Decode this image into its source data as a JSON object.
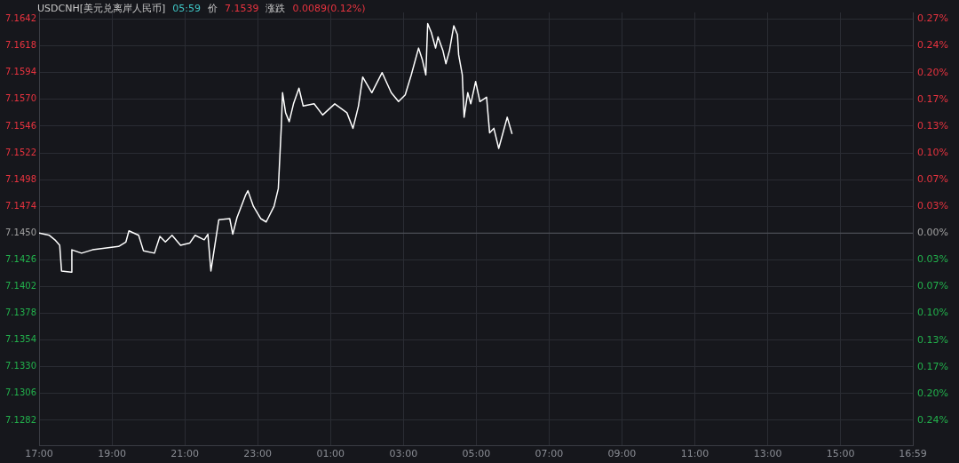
{
  "chart_data": {
    "type": "line",
    "title": "USDCNH[美元兑离岸人民币]",
    "annotations": [
      "05:59",
      "价",
      "7.1539",
      "涨跌",
      "0.0089(0.12%)"
    ],
    "series": [
      {
        "color": "#ffffff",
        "x": [
          "--01-01T17:00",
          "--01-01T17:17",
          "--01-01T17:26",
          "--01-01T17:34",
          "--01-01T17:37",
          "--01-01T17:53",
          "--01-01T17:54",
          "--01-01T18:10",
          "--01-01T18:28",
          "--01-01T19:11",
          "--01-01T19:23",
          "--01-01T19:28",
          "--01-01T19:44",
          "--01-01T19:52",
          "--01-01T20:10",
          "--01-01T20:19",
          "--01-01T20:28",
          "--01-01T20:39",
          "--01-01T20:53",
          "--01-01T21:08",
          "--01-01T21:17",
          "--01-01T21:32",
          "--01-01T21:38",
          "--01-01T21:43",
          "--01-01T21:52",
          "--01-01T21:56",
          "--01-01T22:14",
          "--01-01T22:19",
          "--01-01T22:26",
          "--01-01T22:40",
          "--01-01T22:44",
          "--01-01T22:53",
          "--01-01T23:05",
          "--01-01T23:14",
          "--01-01T23:27",
          "--01-01T23:34",
          "--01-01T23:39",
          "--01-01T23:41",
          "--01-01T23:46",
          "--01-01T23:52",
          "--01-01T23:59",
          "--01-02T00:08",
          "--01-02T00:15",
          "--01-02T00:33",
          "--01-02T00:47",
          "--01-02T01:07",
          "--01-02T01:27",
          "--01-02T01:37",
          "--01-02T01:46",
          "--01-02T01:53",
          "--01-02T02:08",
          "--01-02T02:25",
          "--01-02T02:40",
          "--01-02T02:52",
          "--01-02T03:03",
          "--01-02T03:13",
          "--01-02T03:25",
          "--01-02T03:31",
          "--01-02T03:37",
          "--01-02T03:40",
          "--01-02T03:46",
          "--01-02T03:53",
          "--01-02T03:57",
          "--01-02T04:05",
          "--01-02T04:10",
          "--01-02T04:16",
          "--01-02T04:23",
          "--01-02T04:29",
          "--01-02T04:31",
          "--01-02T04:37",
          "--01-02T04:40",
          "--01-02T04:46",
          "--01-02T04:51",
          "--01-02T04:59",
          "--01-02T05:06",
          "--01-02T05:17",
          "--01-02T05:22",
          "--01-02T05:29",
          "--01-02T05:37",
          "--01-02T05:44",
          "--01-02T05:51",
          "--01-02T05:59"
        ],
        "values": [
          7.145,
          7.1448,
          7.1444,
          7.1439,
          7.1416,
          7.1415,
          7.1435,
          7.1432,
          7.1435,
          7.1438,
          7.1442,
          7.1452,
          7.1448,
          7.1434,
          7.1432,
          7.1447,
          7.1442,
          7.1448,
          7.1439,
          7.1441,
          7.1448,
          7.1444,
          7.1449,
          7.1416,
          7.1448,
          7.1462,
          7.1463,
          7.1449,
          7.1464,
          7.1484,
          7.1488,
          7.1474,
          7.1463,
          7.146,
          7.1474,
          7.149,
          7.1546,
          7.1576,
          7.1558,
          7.155,
          7.1566,
          7.158,
          7.1564,
          7.1566,
          7.1556,
          7.1566,
          7.1558,
          7.1544,
          7.1564,
          7.159,
          7.1576,
          7.1594,
          7.1576,
          7.1568,
          7.1574,
          7.1592,
          7.1616,
          7.1606,
          7.1592,
          7.1638,
          7.163,
          7.1616,
          7.1626,
          7.1614,
          7.1602,
          7.1614,
          7.1636,
          7.1628,
          7.161,
          7.1592,
          7.1554,
          7.1576,
          7.1566,
          7.1586,
          7.1568,
          7.1572,
          7.154,
          7.1544,
          7.1526,
          7.154,
          7.1554,
          7.1539
        ]
      }
    ],
    "xlim": [
      "--01-01T17:00",
      "--01-02T16:59"
    ],
    "xticks": [
      {
        "value": "--01-01T17:00",
        "label": "17:00"
      },
      {
        "value": "--01-01T19:00",
        "label": "19:00"
      },
      {
        "value": "--01-01T21:00",
        "label": "21:00"
      },
      {
        "value": "--01-01T23:00",
        "label": "23:00"
      },
      {
        "value": "--01-02T01:00",
        "label": "01:00"
      },
      {
        "value": "--01-02T03:00",
        "label": "03:00"
      },
      {
        "value": "--01-02T05:00",
        "label": "05:00"
      },
      {
        "value": "--01-02T07:00",
        "label": "07:00"
      },
      {
        "value": "--01-02T09:00",
        "label": "09:00"
      },
      {
        "value": "--01-02T11:00",
        "label": "11:00"
      },
      {
        "value": "--01-02T13:00",
        "label": "13:00"
      },
      {
        "value": "--01-02T15:00",
        "label": "15:00"
      },
      {
        "value": "--01-02T16:59",
        "label": "16:59"
      }
    ],
    "ylim": [
      7.1259,
      7.1648
    ],
    "yticks": [
      7.1642,
      7.1618,
      7.1594,
      {
        "value": 7.157,
        "label": "7.1570"
      },
      7.1546,
      7.1522,
      7.1498,
      7.1474,
      {
        "value": 7.145,
        "label": "7.1450"
      },
      7.1426,
      7.1402,
      7.1378,
      7.1354,
      {
        "value": 7.133,
        "label": "7.1330"
      },
      7.1306,
      7.1282
    ],
    "y2lim": [
      -0.2673,
      0.2771
    ],
    "y2ticks": [
      {
        "value": 0.2687,
        "label": "0.27%"
      },
      {
        "value": 0.2351,
        "label": "0.24%"
      },
      {
        "value": 0.2015,
        "label": "0.20%"
      },
      {
        "value": 0.168,
        "label": "0.17%"
      },
      {
        "value": 0.1344,
        "label": "0.13%"
      },
      {
        "value": 0.1008,
        "label": "0.10%"
      },
      {
        "value": 0.0672,
        "label": "0.07%"
      },
      {
        "value": 0.0336,
        "label": "0.03%"
      },
      {
        "value": 0,
        "label": "0.00%"
      },
      {
        "value": -0.0336,
        "label": "0.03%"
      },
      {
        "value": -0.0672,
        "label": "0.07%"
      },
      {
        "value": -0.1008,
        "label": "0.10%"
      },
      {
        "value": -0.1344,
        "label": "0.13%"
      },
      {
        "value": -0.168,
        "label": "0.17%"
      },
      {
        "value": -0.2015,
        "label": "0.20%"
      },
      {
        "value": -0.2351,
        "label": "0.24%"
      }
    ],
    "ref_lines": [
      {
        "axis": "y",
        "value": 7.145,
        "color": "#55585f"
      }
    ],
    "grid": true,
    "legend": false,
    "marker": "none",
    "line_style": "solid"
  }
}
